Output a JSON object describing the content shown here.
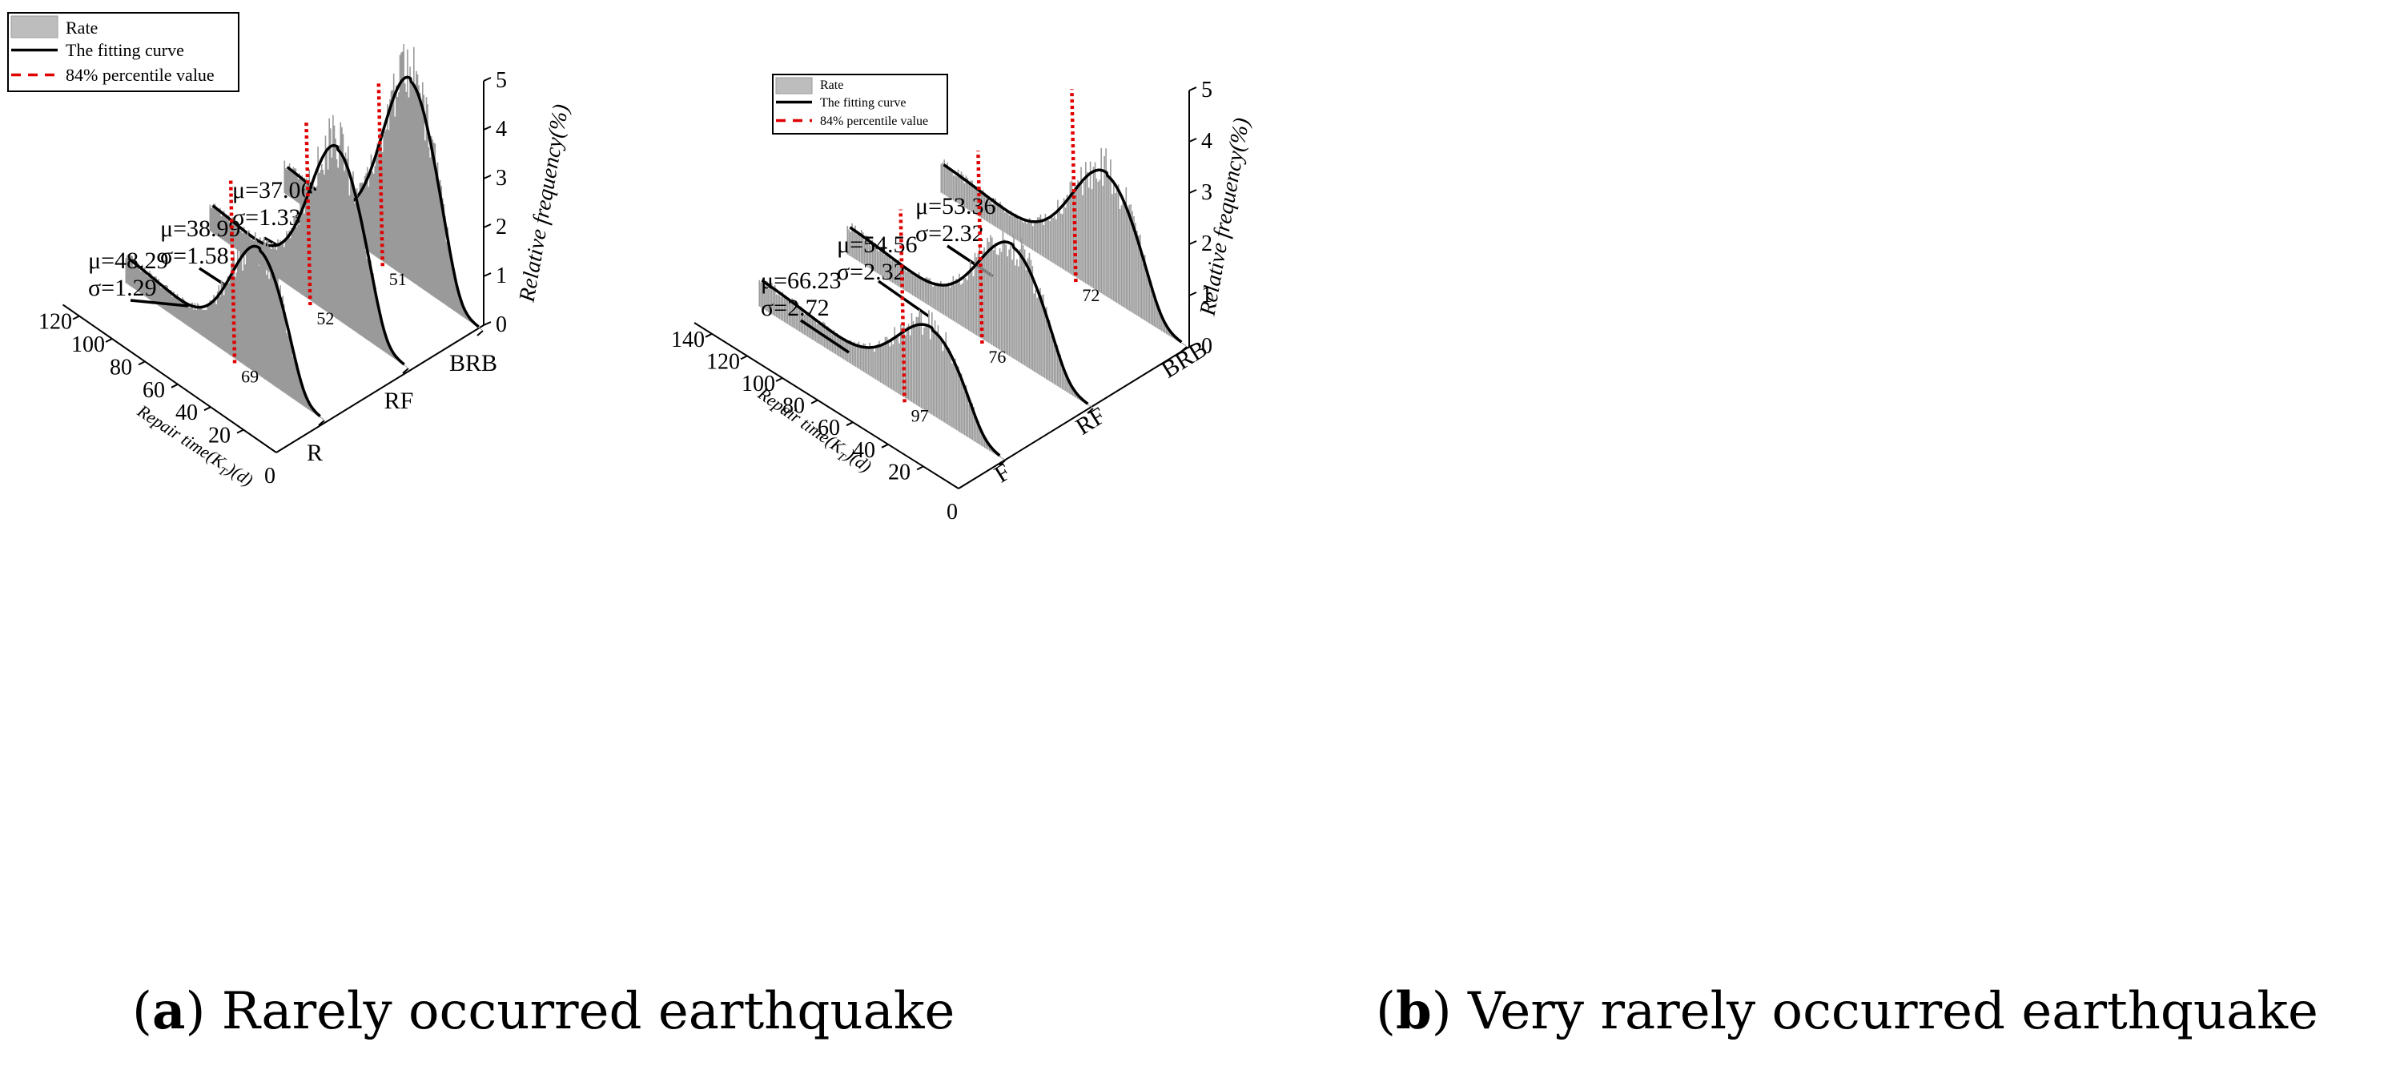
{
  "chart_data": [
    {
      "type": "3d-histogram-with-fit",
      "panel_label": "a",
      "caption": "Rarely occurred earthquake",
      "xlabel": "Repair time(K_T)(d)",
      "xlabel_main": "Repair time(K",
      "xlabel_sub": "T",
      "xlabel_tail": ")(d)",
      "zlabel": "Relative frequency(%)",
      "x_ticks": [
        "20",
        "40",
        "60",
        "80",
        "100",
        "120"
      ],
      "origin_tick": "0",
      "z_ticks": [
        "0",
        "1",
        "2",
        "3",
        "4",
        "5"
      ],
      "zlim": [
        0,
        5
      ],
      "xlim": [
        0,
        130
      ],
      "categories": [
        "R",
        "RF",
        "BRB"
      ],
      "legend": {
        "rate": "Rate",
        "fit": "The fitting curve",
        "p84": "84% percentile value"
      },
      "series": [
        {
          "name": "R",
          "mu": 48.29,
          "sigma": 1.29,
          "mu_label": "μ=48.29",
          "sigma_label": "σ=1.29",
          "p84_label": "69",
          "peak": 2.5
        },
        {
          "name": "RF",
          "mu": 38.99,
          "sigma": 1.58,
          "mu_label": "μ=38.99",
          "sigma_label": "σ=1.58",
          "p84_label": "52",
          "peak": 3.4
        },
        {
          "name": "BRB",
          "mu": 37.06,
          "sigma": 1.33,
          "mu_label": "μ=37.06",
          "sigma_label": "σ=1.33",
          "p84_label": "51",
          "peak": 4.0
        }
      ]
    },
    {
      "type": "3d-histogram-with-fit",
      "panel_label": "b",
      "caption": "Very rarely occurred earthquake",
      "xlabel": "Repair time(K_T)(d)",
      "xlabel_main": "Repair time(K",
      "xlabel_sub": "T",
      "xlabel_tail": ")(d)",
      "zlabel": "Relative frequency(%)",
      "x_ticks": [
        "20",
        "40",
        "60",
        "80",
        "100",
        "120",
        "140"
      ],
      "origin_tick": "0",
      "z_ticks": [
        "0",
        "1",
        "2",
        "3",
        "4",
        "5"
      ],
      "zlim": [
        0,
        5
      ],
      "xlim": [
        0,
        150
      ],
      "categories": [
        "F",
        "RF",
        "BRB"
      ],
      "legend": {
        "rate": "Rate",
        "fit": "The fitting curve",
        "p84": "84% percentile value"
      },
      "series": [
        {
          "name": "F",
          "mu": 66.23,
          "sigma": 2.72,
          "mu_label": "μ=66.23",
          "sigma_label": "σ=2.72",
          "p84_label": "97",
          "peak": 1.6
        },
        {
          "name": "RF",
          "mu": 54.56,
          "sigma": 2.32,
          "mu_label": "μ=54.56",
          "sigma_label": "σ=2.32",
          "p84_label": "76",
          "peak": 2.1
        },
        {
          "name": "BRB",
          "mu": 53.36,
          "sigma": 2.32,
          "mu_label": "μ=53.36",
          "sigma_label": "σ=2.32",
          "p84_label": "72",
          "peak": 2.3
        }
      ]
    }
  ]
}
